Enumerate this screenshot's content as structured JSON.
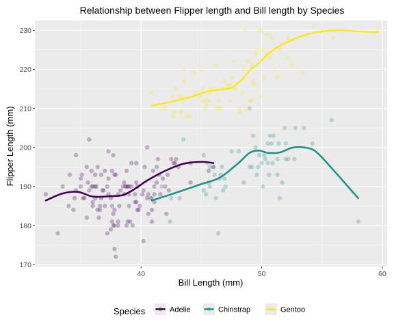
{
  "chart_data": {
    "type": "scatter",
    "title": "Relationship between Flipper length and Bill length by Species",
    "xlabel": "Bill Length (mm)",
    "ylabel": "Flipper Length (mm)",
    "xlim": [
      31.2,
      60.4
    ],
    "ylim": [
      169.5,
      232.5
    ],
    "x_ticks": [
      40,
      50,
      60
    ],
    "y_ticks": [
      170,
      180,
      190,
      200,
      210,
      220,
      230
    ],
    "grid": true,
    "background": "#ebebeb",
    "legend": {
      "title": "Species",
      "position": "bottom",
      "entries": [
        "Adelie",
        "Chinstrap",
        "Gentoo"
      ]
    },
    "series": [
      {
        "name": "Adelie",
        "color": "#440154",
        "points": [
          [
            32.1,
            188
          ],
          [
            33.1,
            178
          ],
          [
            33.5,
            190
          ],
          [
            34.0,
            185
          ],
          [
            34.1,
            193
          ],
          [
            34.4,
            184
          ],
          [
            34.5,
            187
          ],
          [
            34.6,
            189
          ],
          [
            34.6,
            198
          ],
          [
            35.0,
            190
          ],
          [
            35.0,
            192
          ],
          [
            35.1,
            193
          ],
          [
            35.2,
            187
          ],
          [
            35.3,
            187
          ],
          [
            35.5,
            182
          ],
          [
            35.5,
            195
          ],
          [
            35.6,
            191
          ],
          [
            35.7,
            189
          ],
          [
            35.7,
            202
          ],
          [
            35.9,
            190
          ],
          [
            35.9,
            194
          ],
          [
            36.0,
            185
          ],
          [
            36.0,
            186
          ],
          [
            36.0,
            190
          ],
          [
            36.2,
            187
          ],
          [
            36.2,
            190
          ],
          [
            36.2,
            193
          ],
          [
            36.3,
            190
          ],
          [
            36.4,
            184
          ],
          [
            36.4,
            195
          ],
          [
            36.5,
            182
          ],
          [
            36.6,
            184
          ],
          [
            36.6,
            185
          ],
          [
            36.7,
            187
          ],
          [
            36.7,
            193
          ],
          [
            36.8,
            189
          ],
          [
            36.9,
            189
          ],
          [
            37.0,
            185
          ],
          [
            37.0,
            194
          ],
          [
            37.2,
            178
          ],
          [
            37.2,
            190
          ],
          [
            37.3,
            188
          ],
          [
            37.3,
            192
          ],
          [
            37.3,
            199
          ],
          [
            37.5,
            179
          ],
          [
            37.5,
            187
          ],
          [
            37.6,
            181
          ],
          [
            37.6,
            185
          ],
          [
            37.6,
            194
          ],
          [
            37.7,
            180
          ],
          [
            37.7,
            183
          ],
          [
            37.7,
            198
          ],
          [
            37.8,
            174
          ],
          [
            37.8,
            180
          ],
          [
            37.8,
            184
          ],
          [
            37.8,
            193
          ],
          [
            37.9,
            172
          ],
          [
            37.9,
            193
          ],
          [
            38.1,
            180
          ],
          [
            38.1,
            181
          ],
          [
            38.1,
            188
          ],
          [
            38.2,
            185
          ],
          [
            38.3,
            189
          ],
          [
            38.5,
            190
          ],
          [
            38.6,
            188
          ],
          [
            38.6,
            191
          ],
          [
            38.7,
            190
          ],
          [
            38.8,
            180
          ],
          [
            38.8,
            190
          ],
          [
            38.8,
            194
          ],
          [
            38.9,
            181
          ],
          [
            38.9,
            190
          ],
          [
            39.0,
            185
          ],
          [
            39.0,
            188
          ],
          [
            39.0,
            190
          ],
          [
            39.1,
            181
          ],
          [
            39.2,
            190
          ],
          [
            39.2,
            196
          ],
          [
            39.3,
            180
          ],
          [
            39.5,
            186
          ],
          [
            39.5,
            188
          ],
          [
            39.6,
            186
          ],
          [
            39.6,
            191
          ],
          [
            39.6,
            196
          ],
          [
            39.7,
            184
          ],
          [
            39.7,
            190
          ],
          [
            39.8,
            184
          ],
          [
            39.9,
            185
          ],
          [
            40.1,
            188
          ],
          [
            40.2,
            176
          ],
          [
            40.2,
            189
          ],
          [
            40.3,
            195
          ],
          [
            40.5,
            187
          ],
          [
            40.5,
            200
          ],
          [
            40.6,
            183
          ],
          [
            40.6,
            188
          ],
          [
            40.8,
            187
          ],
          [
            40.9,
            181
          ],
          [
            40.9,
            184
          ],
          [
            41.0,
            194
          ],
          [
            41.1,
            186
          ],
          [
            41.1,
            188
          ],
          [
            41.1,
            190
          ],
          [
            41.3,
            191
          ],
          [
            41.3,
            195
          ],
          [
            41.4,
            197
          ],
          [
            41.5,
            193
          ],
          [
            41.6,
            188
          ],
          [
            41.8,
            192
          ],
          [
            42.0,
            190
          ],
          [
            42.1,
            183
          ],
          [
            42.2,
            193
          ],
          [
            42.3,
            189
          ],
          [
            42.5,
            197
          ],
          [
            42.7,
            196
          ],
          [
            42.8,
            196
          ],
          [
            42.9,
            197
          ],
          [
            43.1,
            195
          ],
          [
            44.1,
            191
          ],
          [
            44.1,
            196
          ],
          [
            45.6,
            194
          ],
          [
            46.0,
            195
          ]
        ]
      },
      {
        "name": "Chinstrap",
        "color": "#21918c",
        "points": [
          [
            40.9,
            187
          ],
          [
            41.7,
            190
          ],
          [
            42.4,
            181
          ],
          [
            42.5,
            187
          ],
          [
            43.2,
            187
          ],
          [
            43.5,
            202
          ],
          [
            45.2,
            189
          ],
          [
            45.2,
            198
          ],
          [
            45.4,
            188
          ],
          [
            45.5,
            196
          ],
          [
            45.6,
            191
          ],
          [
            45.7,
            190
          ],
          [
            45.7,
            195
          ],
          [
            46.0,
            195
          ],
          [
            46.1,
            193
          ],
          [
            46.2,
            187
          ],
          [
            46.4,
            178
          ],
          [
            46.5,
            192
          ],
          [
            46.6,
            193
          ],
          [
            46.7,
            195
          ],
          [
            46.8,
            189
          ],
          [
            46.9,
            192
          ],
          [
            47.0,
            190
          ],
          [
            47.5,
            199
          ],
          [
            48.1,
            199
          ],
          [
            48.5,
            191
          ],
          [
            49.0,
            195
          ],
          [
            49.0,
            210
          ],
          [
            49.2,
            195
          ],
          [
            49.3,
            203
          ],
          [
            49.5,
            200
          ],
          [
            49.6,
            193
          ],
          [
            49.7,
            195
          ],
          [
            49.8,
            198
          ],
          [
            50.0,
            196
          ],
          [
            50.1,
            190
          ],
          [
            50.2,
            198
          ],
          [
            50.3,
            197
          ],
          [
            50.5,
            196
          ],
          [
            50.5,
            201
          ],
          [
            50.6,
            193
          ],
          [
            50.7,
            203
          ],
          [
            50.8,
            201
          ],
          [
            50.9,
            196
          ],
          [
            51.0,
            203
          ],
          [
            51.3,
            193
          ],
          [
            51.3,
            197
          ],
          [
            51.4,
            201
          ],
          [
            51.5,
            187
          ],
          [
            51.7,
            191
          ],
          [
            51.9,
            205
          ],
          [
            52.0,
            197
          ],
          [
            52.0,
            201
          ],
          [
            52.2,
            197
          ],
          [
            52.7,
            197
          ],
          [
            52.8,
            205
          ],
          [
            53.5,
            205
          ],
          [
            54.2,
            201
          ],
          [
            55.8,
            207
          ],
          [
            58.0,
            181
          ]
        ]
      },
      {
        "name": "Gentoo",
        "color": "#fde725",
        "points": [
          [
            40.9,
            214
          ],
          [
            41.7,
            210
          ],
          [
            42.0,
            210
          ],
          [
            42.6,
            213
          ],
          [
            42.7,
            208
          ],
          [
            42.8,
            209
          ],
          [
            42.9,
            215
          ],
          [
            43.2,
            213
          ],
          [
            43.3,
            209
          ],
          [
            43.4,
            213
          ],
          [
            43.5,
            220
          ],
          [
            43.6,
            217
          ],
          [
            43.8,
            208
          ],
          [
            44.0,
            208
          ],
          [
            44.4,
            219
          ],
          [
            44.5,
            214
          ],
          [
            44.9,
            213
          ],
          [
            45.0,
            220
          ],
          [
            45.1,
            215
          ],
          [
            45.2,
            212
          ],
          [
            45.3,
            210
          ],
          [
            45.4,
            211
          ],
          [
            45.5,
            212
          ],
          [
            45.7,
            214
          ],
          [
            45.8,
            215
          ],
          [
            46.1,
            215
          ],
          [
            46.2,
            221
          ],
          [
            46.3,
            210
          ],
          [
            46.4,
            212
          ],
          [
            46.5,
            210
          ],
          [
            46.6,
            210
          ],
          [
            46.8,
            215
          ],
          [
            46.9,
            217
          ],
          [
            47.2,
            216
          ],
          [
            47.3,
            216
          ],
          [
            47.4,
            212
          ],
          [
            47.5,
            218
          ],
          [
            47.6,
            215
          ],
          [
            47.7,
            222
          ],
          [
            47.8,
            215
          ],
          [
            48.1,
            210
          ],
          [
            48.2,
            209
          ],
          [
            48.4,
            214
          ],
          [
            48.5,
            220
          ],
          [
            48.6,
            230
          ],
          [
            48.7,
            210
          ],
          [
            48.8,
            222
          ],
          [
            49.0,
            212
          ],
          [
            49.1,
            212
          ],
          [
            49.2,
            221
          ],
          [
            49.3,
            217
          ],
          [
            49.4,
            216
          ],
          [
            49.5,
            224
          ],
          [
            49.6,
            225
          ],
          [
            49.8,
            230
          ],
          [
            49.9,
            213
          ],
          [
            50.0,
            230
          ],
          [
            50.1,
            225
          ],
          [
            50.2,
            218
          ],
          [
            50.4,
            224
          ],
          [
            50.5,
            229
          ],
          [
            50.7,
            223
          ],
          [
            50.8,
            228
          ],
          [
            51.1,
            220
          ],
          [
            51.3,
            218
          ],
          [
            51.5,
            225
          ],
          [
            52.1,
            223
          ],
          [
            52.2,
            228
          ],
          [
            52.5,
            221
          ],
          [
            53.4,
            219
          ],
          [
            54.3,
            231
          ],
          [
            55.1,
            230
          ],
          [
            55.9,
            228
          ],
          [
            59.6,
            230
          ]
        ]
      }
    ],
    "smooth_lines": [
      {
        "name": "Adelie",
        "color": "#440154",
        "points": [
          [
            32.1,
            186.4
          ],
          [
            33.5,
            188.2
          ],
          [
            34.8,
            188.6
          ],
          [
            36.0,
            187.4
          ],
          [
            37.5,
            187.5
          ],
          [
            38.5,
            187.8
          ],
          [
            39.5,
            189.4
          ],
          [
            40.5,
            191.5
          ],
          [
            42.0,
            194.0
          ],
          [
            43.5,
            195.8
          ],
          [
            45.0,
            196.3
          ],
          [
            46.0,
            196.0
          ]
        ]
      },
      {
        "name": "Chinstrap",
        "color": "#21918c",
        "points": [
          [
            40.9,
            186.4
          ],
          [
            43.0,
            188.5
          ],
          [
            45.0,
            190.6
          ],
          [
            46.5,
            192.2
          ],
          [
            48.0,
            195.8
          ],
          [
            49.0,
            198.6
          ],
          [
            49.8,
            199.2
          ],
          [
            50.5,
            198.6
          ],
          [
            51.5,
            198.7
          ],
          [
            52.5,
            199.9
          ],
          [
            53.5,
            200.0
          ],
          [
            54.5,
            198.9
          ],
          [
            56.0,
            194.0
          ],
          [
            57.0,
            190.5
          ],
          [
            58.0,
            187.0
          ]
        ]
      },
      {
        "name": "Gentoo",
        "color": "#fde725",
        "points": [
          [
            40.9,
            210.7
          ],
          [
            42.5,
            211.7
          ],
          [
            44.0,
            212.8
          ],
          [
            45.5,
            214.3
          ],
          [
            46.5,
            214.8
          ],
          [
            47.5,
            215.3
          ],
          [
            48.4,
            217.5
          ],
          [
            49.0,
            219.7
          ],
          [
            49.8,
            221.7
          ],
          [
            50.7,
            224.4
          ],
          [
            52.0,
            226.8
          ],
          [
            53.5,
            228.7
          ],
          [
            55.0,
            229.7
          ],
          [
            56.5,
            230.0
          ],
          [
            57.5,
            229.8
          ],
          [
            59.6,
            229.5
          ]
        ]
      }
    ]
  }
}
